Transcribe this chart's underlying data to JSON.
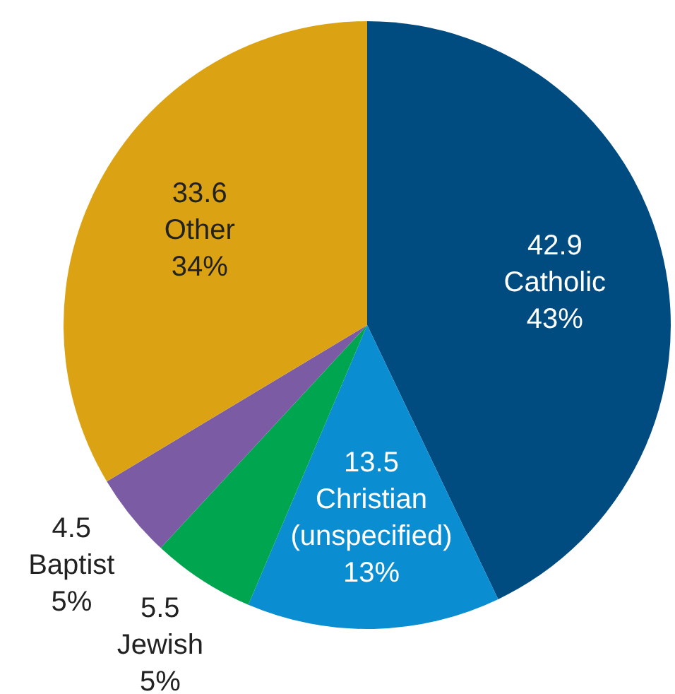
{
  "chart_data": {
    "type": "pie",
    "categories": [
      "Catholic",
      "Christian\n(unspecified)",
      "Jewish",
      "Baptist",
      "Other"
    ],
    "values": [
      42.9,
      13.5,
      5.5,
      4.5,
      33.6
    ],
    "annotations": [
      "43%",
      "13%",
      "5%",
      "5%",
      "34%"
    ],
    "colors": [
      "#004b7f",
      "#0a8ed1",
      "#00a54f",
      "#7a5ba4",
      "#dba213"
    ],
    "data_labels": true
  }
}
